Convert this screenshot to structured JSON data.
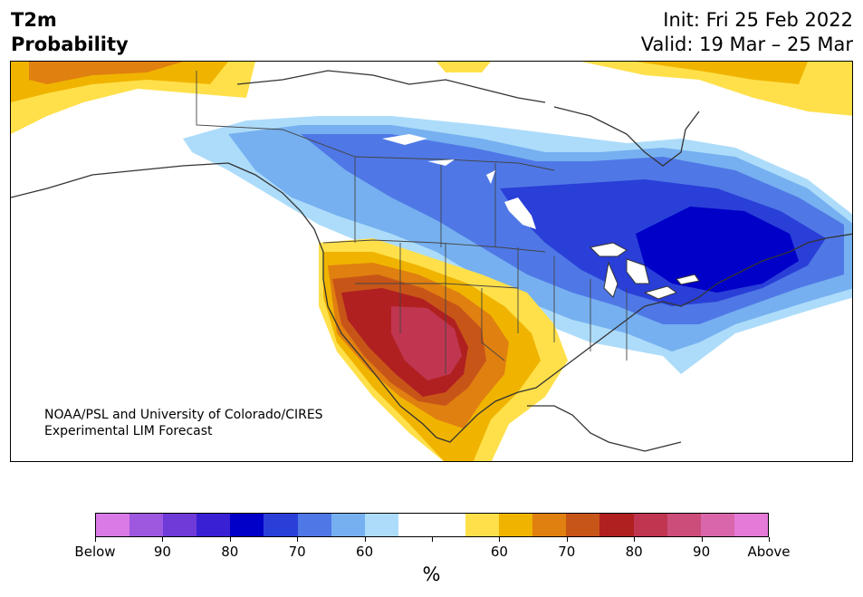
{
  "header": {
    "variable": "T2m",
    "product": "Probability",
    "init": "Init: Fri 25 Feb 2022",
    "valid": "Valid: 19 Mar – 25 Mar"
  },
  "credit": {
    "line1": "NOAA/PSL and University of Colorado/CIRES",
    "line2": "Experimental LIM Forecast"
  },
  "colorbar": {
    "colors": [
      "#d97ae6",
      "#9e58e0",
      "#6e3ad8",
      "#3a20d4",
      "#0000c8",
      "#2a3fd8",
      "#4f78e6",
      "#76b0f0",
      "#addcfa",
      "#ffffff",
      "#ffffff",
      "#ffe04a",
      "#f0b400",
      "#e08010",
      "#c85518",
      "#b02020",
      "#c03550",
      "#cc4d7a",
      "#d966aa",
      "#e57ad8"
    ],
    "labels": [
      "Below",
      "90",
      "80",
      "70",
      "60",
      "",
      "60",
      "70",
      "80",
      "90",
      "Above"
    ],
    "unit": "%"
  },
  "palette": {
    "cold_light": "#addcfa",
    "cold_mid": "#76b0f0",
    "cold_med": "#4f78e6",
    "cold_strong": "#2a3fd8",
    "cold_max": "#0000c8",
    "warm_light": "#ffe04a",
    "warm_mid": "#f0b400",
    "warm_med": "#e08010",
    "warm_strong": "#c85518",
    "warm_dark": "#b02020",
    "warm_max": "#c03550"
  }
}
